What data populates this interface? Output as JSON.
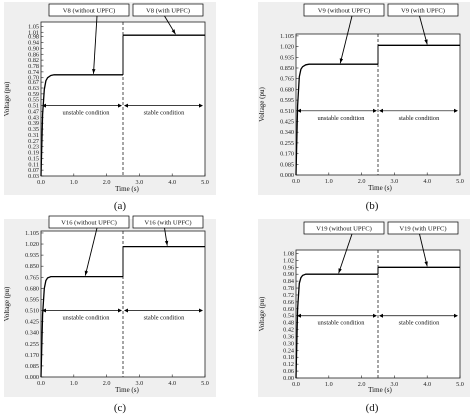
{
  "chart_data": [
    {
      "type": "line",
      "caption": "(a)",
      "ylabel": "Voltage (pu)",
      "xlabel": "Time (s)",
      "xlim": [
        0.0,
        5.0
      ],
      "xticks": [
        "0.0",
        "1.0",
        "2.0",
        "3.0",
        "4.0",
        "5.0"
      ],
      "xtick_values": [
        0,
        1,
        2,
        3,
        4,
        5
      ],
      "ylim": [
        0.03,
        1.08
      ],
      "yticks": [
        "0.03",
        "0.07",
        "0.11",
        "0.15",
        "0.19",
        "0.23",
        "0.27",
        "0.31",
        "0.35",
        "0.39",
        "0.43",
        "0.47",
        "0.51",
        "0.55",
        "0.59",
        "0.63",
        "0.67",
        "0.70",
        "0.74",
        "0.78",
        "0.82",
        "0.86",
        "0.90",
        "0.94",
        "0.98",
        "1.01",
        "1.05"
      ],
      "ytick_values": [
        0.03,
        0.07,
        0.11,
        0.15,
        0.19,
        0.23,
        0.27,
        0.31,
        0.35,
        0.39,
        0.43,
        0.47,
        0.51,
        0.55,
        0.59,
        0.63,
        0.67,
        0.7,
        0.74,
        0.78,
        0.82,
        0.86,
        0.9,
        0.94,
        0.98,
        1.01,
        1.05
      ],
      "switch_time": 2.5,
      "series": [
        {
          "name": "V8 (without UPFC)",
          "x": [
            0.0,
            0.05,
            0.1,
            0.15,
            0.2,
            0.3,
            0.4,
            0.5,
            2.5
          ],
          "y": [
            0.03,
            0.45,
            0.62,
            0.68,
            0.7,
            0.715,
            0.72,
            0.72,
            0.72
          ]
        },
        {
          "name": "V8 (with UPFC)",
          "x": [
            2.5,
            5.0
          ],
          "y": [
            0.99,
            0.99
          ]
        }
      ],
      "annotations": {
        "left": "V8 (without UPFC)",
        "right": "V8 (with UPFC)",
        "left_arrow_x": 1.6,
        "left_arrow_y": 0.72,
        "right_arrow_x": 4.1,
        "right_arrow_y": 0.99
      },
      "unstable_label": "unstable condition",
      "stable_label": "stable condition",
      "cond_y": 0.51
    },
    {
      "type": "line",
      "caption": "(b)",
      "ylabel": "Voltage (pu)",
      "xlabel": "Time (s)",
      "xlim": [
        0.0,
        5.0
      ],
      "xticks": [
        "0.0",
        "1.0",
        "2.0",
        "3.0",
        "4.0",
        "5.0"
      ],
      "xtick_values": [
        0,
        1,
        2,
        3,
        4,
        5
      ],
      "ylim": [
        0.0,
        1.12
      ],
      "yticks": [
        "0.000",
        "0.085",
        "0.170",
        "0.255",
        "0.340",
        "0.425",
        "0.510",
        "0.595",
        "0.680",
        "0.765",
        "0.850",
        "0.935",
        "1.020",
        "1.105"
      ],
      "ytick_values": [
        0.0,
        0.085,
        0.17,
        0.255,
        0.34,
        0.425,
        0.51,
        0.595,
        0.68,
        0.765,
        0.85,
        0.935,
        1.02,
        1.105
      ],
      "switch_time": 2.5,
      "series": [
        {
          "name": "V9 (without UPFC)",
          "x": [
            0.0,
            0.05,
            0.1,
            0.15,
            0.2,
            0.3,
            0.4,
            0.5,
            2.5
          ],
          "y": [
            0.0,
            0.55,
            0.78,
            0.84,
            0.86,
            0.875,
            0.88,
            0.88,
            0.88
          ]
        },
        {
          "name": "V9 (with UPFC)",
          "x": [
            2.5,
            5.0
          ],
          "y": [
            1.03,
            1.03
          ]
        }
      ],
      "annotations": {
        "left": "V9 (without UPFC)",
        "right": "V9 (with UPFC)",
        "left_arrow_x": 1.35,
        "left_arrow_y": 0.88,
        "right_arrow_x": 4.0,
        "right_arrow_y": 1.03
      },
      "unstable_label": "unstable condition",
      "stable_label": "stable condition",
      "cond_y": 0.51
    },
    {
      "type": "line",
      "caption": "(c)",
      "ylabel": "Voltage (pu)",
      "xlabel": "Time (s)",
      "xlim": [
        0.0,
        5.0
      ],
      "xticks": [
        "0.0",
        "1.0",
        "2.0",
        "3.0",
        "4.0",
        "5.0"
      ],
      "xtick_values": [
        0,
        1,
        2,
        3,
        4,
        5
      ],
      "ylim": [
        0.0,
        1.12
      ],
      "yticks": [
        "0.000",
        "0.085",
        "0.170",
        "0.255",
        "0.340",
        "0.425",
        "0.510",
        "0.595",
        "0.680",
        "0.765",
        "0.850",
        "0.935",
        "1.020",
        "1.105"
      ],
      "ytick_values": [
        0.0,
        0.085,
        0.17,
        0.255,
        0.34,
        0.425,
        0.51,
        0.595,
        0.68,
        0.765,
        0.85,
        0.935,
        1.02,
        1.105
      ],
      "switch_time": 2.5,
      "series": [
        {
          "name": "V16 (without UPFC)",
          "x": [
            0.0,
            0.05,
            0.1,
            0.15,
            0.2,
            0.3,
            0.4,
            0.5,
            2.5
          ],
          "y": [
            0.0,
            0.48,
            0.68,
            0.74,
            0.76,
            0.77,
            0.77,
            0.77,
            0.77
          ]
        },
        {
          "name": "V16 (with UPFC)",
          "x": [
            2.5,
            5.0
          ],
          "y": [
            1.0,
            1.0
          ]
        }
      ],
      "annotations": {
        "left": "V16 (without UPFC)",
        "right": "V16 (with UPFC)",
        "left_arrow_x": 1.35,
        "left_arrow_y": 0.77,
        "right_arrow_x": 3.85,
        "right_arrow_y": 1.0
      },
      "unstable_label": "unstable condition",
      "stable_label": "stable condition",
      "cond_y": 0.51
    },
    {
      "type": "line",
      "caption": "(d)",
      "ylabel": "Voltage (pu)",
      "xlabel": "Time (s)",
      "xlim": [
        0.0,
        5.0
      ],
      "xticks": [
        "0.0",
        "1.0",
        "2.0",
        "3.0",
        "4.0",
        "5.0"
      ],
      "xtick_values": [
        0,
        1,
        2,
        3,
        4,
        5
      ],
      "ylim": [
        0.0,
        1.11
      ],
      "yticks": [
        "0.00",
        "0.06",
        "0.12",
        "0.18",
        "0.24",
        "0.30",
        "0.36",
        "0.42",
        "0.48",
        "0.54",
        "0.60",
        "0.66",
        "0.72",
        "0.78",
        "0.84",
        "0.90",
        "0.96",
        "1.02",
        "1.08"
      ],
      "ytick_values": [
        0.0,
        0.06,
        0.12,
        0.18,
        0.24,
        0.3,
        0.36,
        0.42,
        0.48,
        0.54,
        0.6,
        0.66,
        0.72,
        0.78,
        0.84,
        0.9,
        0.96,
        1.02,
        1.08
      ],
      "switch_time": 2.5,
      "series": [
        {
          "name": "V19 (without UPFC)",
          "x": [
            0.0,
            0.05,
            0.1,
            0.15,
            0.2,
            0.3,
            0.4,
            0.5,
            2.5
          ],
          "y": [
            0.0,
            0.6,
            0.82,
            0.87,
            0.89,
            0.9,
            0.9,
            0.9,
            0.9
          ]
        },
        {
          "name": "V19 (with UPFC)",
          "x": [
            2.5,
            5.0
          ],
          "y": [
            0.96,
            0.96
          ]
        }
      ],
      "annotations": {
        "left": "V19 (without UPFC)",
        "right": "V19 (with UPFC)",
        "left_arrow_x": 1.3,
        "left_arrow_y": 0.9,
        "right_arrow_x": 4.0,
        "right_arrow_y": 0.96
      },
      "unstable_label": "unstable condition",
      "stable_label": "stable condition",
      "cond_y": 0.54
    }
  ]
}
